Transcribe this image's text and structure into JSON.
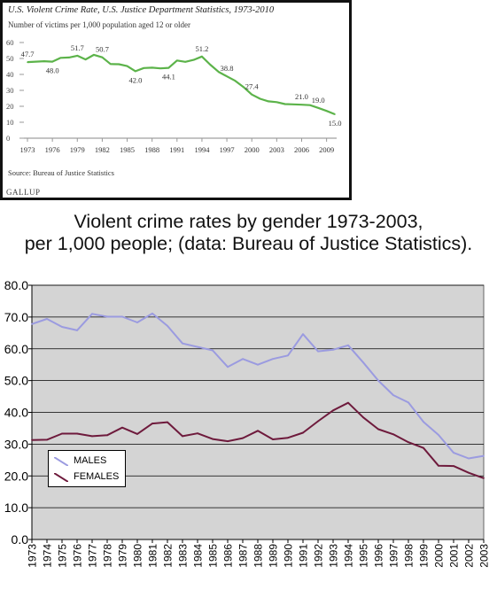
{
  "chart_data": [
    {
      "type": "line",
      "title": "U.S. Violent Crime Rate, U.S. Justice Department Statistics, 1973-2010",
      "subtitle": "Number of victims per 1,000 population aged 12 or older",
      "source": "Source: Bureau of Justice Statistics",
      "brand": "GALLUP",
      "xlim": [
        1973,
        2010
      ],
      "ylim": [
        0,
        60
      ],
      "x_ticks": [
        "1973",
        "1976",
        "1979",
        "1982",
        "1985",
        "1988",
        "1991",
        "1994",
        "1997",
        "2000",
        "2003",
        "2006",
        "2009"
      ],
      "y_ticks": [
        "0",
        "10",
        "20",
        "30",
        "40",
        "50",
        "60"
      ],
      "line_color": "#5cb34a",
      "grid": false,
      "x": [
        1973,
        1974,
        1975,
        1976,
        1977,
        1978,
        1979,
        1980,
        1981,
        1982,
        1983,
        1984,
        1985,
        1986,
        1987,
        1988,
        1989,
        1990,
        1991,
        1992,
        1993,
        1994,
        1995,
        1996,
        1997,
        1998,
        1999,
        2000,
        2001,
        2002,
        2003,
        2004,
        2005,
        2006,
        2007,
        2008,
        2009,
        2010
      ],
      "values": [
        47.7,
        48.0,
        48.3,
        48.0,
        50.4,
        50.6,
        51.7,
        49.4,
        52.3,
        50.7,
        46.5,
        46.4,
        45.2,
        42.0,
        44.0,
        44.2,
        43.8,
        44.1,
        48.7,
        47.9,
        49.1,
        51.2,
        46.1,
        41.6,
        38.8,
        36.0,
        32.1,
        27.4,
        24.7,
        23.1,
        22.6,
        21.4,
        21.2,
        21.0,
        20.7,
        19.0,
        17.1,
        15.0
      ],
      "labels": [
        {
          "x": 1973,
          "y": 47.7,
          "text": "47.7",
          "pos": "above"
        },
        {
          "x": 1976,
          "y": 48.0,
          "text": "48.0",
          "pos": "below"
        },
        {
          "x": 1979,
          "y": 51.7,
          "text": "51.7",
          "pos": "above"
        },
        {
          "x": 1982,
          "y": 50.7,
          "text": "50.7",
          "pos": "above"
        },
        {
          "x": 1986,
          "y": 42.0,
          "text": "42.0",
          "pos": "below"
        },
        {
          "x": 1990,
          "y": 44.1,
          "text": "44.1",
          "pos": "below"
        },
        {
          "x": 1994,
          "y": 51.2,
          "text": "51.2",
          "pos": "above"
        },
        {
          "x": 1997,
          "y": 38.8,
          "text": "38.8",
          "pos": "above"
        },
        {
          "x": 2000,
          "y": 27.4,
          "text": "27.4",
          "pos": "above"
        },
        {
          "x": 2006,
          "y": 21.0,
          "text": "21.0",
          "pos": "above"
        },
        {
          "x": 2008,
          "y": 19.0,
          "text": "19.0",
          "pos": "above"
        },
        {
          "x": 2010,
          "y": 15.0,
          "text": "15.0",
          "pos": "below"
        }
      ]
    },
    {
      "type": "line",
      "title": "Violent crime rates by gender 1973-2003, per 1,000 people; (data: Bureau of Justice Statistics).",
      "title_lines": [
        "Violent crime rates by gender 1973-2003,",
        "per 1,000 people; (data: Bureau of Justice Statistics)."
      ],
      "categories": [
        "1973",
        "1974",
        "1975",
        "1976",
        "1977",
        "1978",
        "1979",
        "1980",
        "1981",
        "1982",
        "1983",
        "1984",
        "1985",
        "1986",
        "1987",
        "1988",
        "1989",
        "1990",
        "1991",
        "1992",
        "1993",
        "1994",
        "1995",
        "1996",
        "1997",
        "1998",
        "1999",
        "2000",
        "2001",
        "2002",
        "2003"
      ],
      "ylim": [
        0,
        80
      ],
      "y_ticks": [
        "0.0",
        "10.0",
        "20.0",
        "30.0",
        "40.0",
        "50.0",
        "60.0",
        "70.0",
        "80.0"
      ],
      "grid": true,
      "plot_background": "#d4d4d4",
      "legend_position": "lower-left",
      "series": [
        {
          "name": "MALES",
          "color": "#9b9be0",
          "values": [
            67.8,
            69.4,
            66.9,
            65.8,
            71.0,
            70.1,
            70.1,
            68.3,
            71.1,
            67.2,
            61.7,
            60.6,
            59.5,
            54.3,
            56.8,
            55.0,
            56.8,
            57.9,
            64.6,
            59.2,
            59.7,
            61.1,
            55.7,
            50.0,
            45.4,
            43.1,
            37.0,
            32.9,
            27.3,
            25.5,
            26.3
          ]
        },
        {
          "name": "FEMALES",
          "color": "#6e1a3c",
          "values": [
            31.3,
            31.4,
            33.3,
            33.3,
            32.5,
            32.8,
            35.2,
            33.2,
            36.5,
            36.9,
            32.5,
            33.4,
            31.6,
            30.9,
            31.9,
            34.2,
            31.5,
            32.0,
            33.6,
            37.2,
            40.6,
            43.0,
            38.4,
            34.7,
            33.1,
            30.6,
            28.8,
            23.2,
            23.1,
            21.0,
            19.3
          ]
        }
      ]
    }
  ]
}
